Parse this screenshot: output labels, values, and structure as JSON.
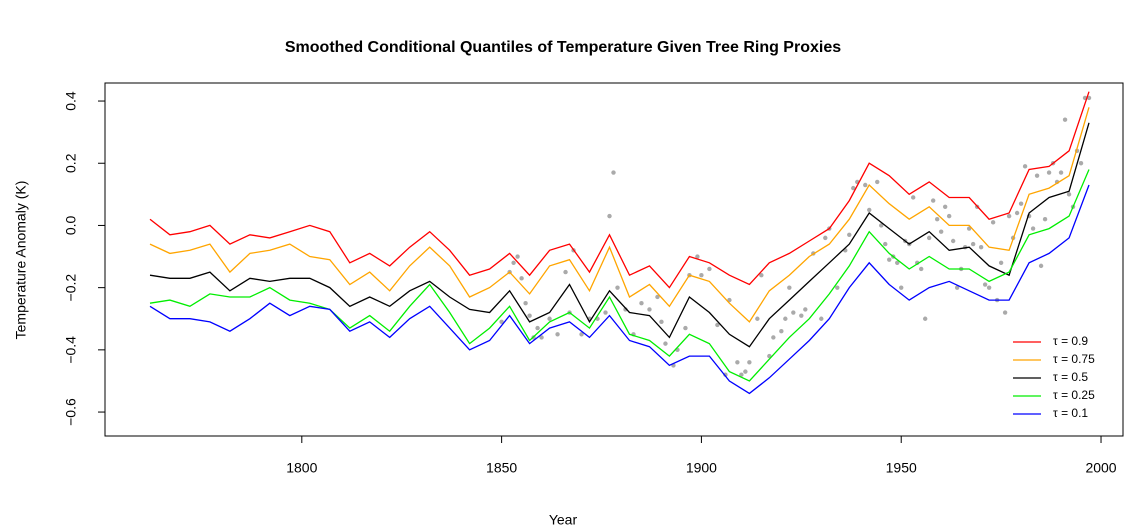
{
  "chart_data": {
    "type": "line",
    "title": "Smoothed Conditional Quantiles of Temperature Given Tree Ring Proxies",
    "xlabel": "Year",
    "ylabel": "Temperature Anomaly (K)",
    "xlim": [
      1750.75,
      2005.5
    ],
    "ylim": [
      -0.677,
      0.458
    ],
    "xticks": [
      1800,
      1850,
      1900,
      1950,
      2000
    ],
    "yticks": [
      {
        "value": -0.6,
        "label": "−0.6"
      },
      {
        "value": -0.4,
        "label": "−0.4"
      },
      {
        "value": -0.2,
        "label": "−0.2"
      },
      {
        "value": 0.0,
        "label": "0.0"
      },
      {
        "value": 0.2,
        "label": "0.2"
      },
      {
        "value": 0.4,
        "label": "0.4"
      }
    ],
    "legend": "bottom-right",
    "x": [
      1762,
      1767,
      1772,
      1777,
      1782,
      1787,
      1792,
      1797,
      1802,
      1807,
      1812,
      1817,
      1822,
      1827,
      1832,
      1837,
      1842,
      1847,
      1852,
      1857,
      1862,
      1867,
      1872,
      1877,
      1882,
      1887,
      1892,
      1897,
      1902,
      1907,
      1912,
      1917,
      1922,
      1927,
      1932,
      1937,
      1942,
      1947,
      1952,
      1957,
      1962,
      1967,
      1972,
      1977,
      1982,
      1987,
      1992,
      1997
    ],
    "series": [
      {
        "name": "τ = 0.9",
        "color": "#ff0000",
        "values": [
          0.02,
          -0.03,
          -0.02,
          0.0,
          -0.06,
          -0.03,
          -0.04,
          -0.02,
          0.0,
          -0.02,
          -0.12,
          -0.09,
          -0.13,
          -0.07,
          -0.02,
          -0.08,
          -0.16,
          -0.14,
          -0.09,
          -0.16,
          -0.08,
          -0.06,
          -0.15,
          -0.03,
          -0.16,
          -0.13,
          -0.2,
          -0.1,
          -0.12,
          -0.16,
          -0.19,
          -0.12,
          -0.09,
          -0.05,
          -0.01,
          0.08,
          0.2,
          0.16,
          0.1,
          0.14,
          0.09,
          0.09,
          0.02,
          0.04,
          0.18,
          0.19,
          0.24,
          0.43
        ]
      },
      {
        "name": "τ = 0.75",
        "color": "#ffa500",
        "values": [
          -0.06,
          -0.09,
          -0.08,
          -0.06,
          -0.15,
          -0.09,
          -0.08,
          -0.06,
          -0.1,
          -0.11,
          -0.19,
          -0.15,
          -0.21,
          -0.13,
          -0.07,
          -0.13,
          -0.23,
          -0.2,
          -0.15,
          -0.22,
          -0.13,
          -0.11,
          -0.21,
          -0.07,
          -0.23,
          -0.19,
          -0.26,
          -0.16,
          -0.18,
          -0.25,
          -0.31,
          -0.21,
          -0.16,
          -0.1,
          -0.06,
          0.02,
          0.13,
          0.07,
          0.02,
          0.06,
          0.0,
          0.0,
          -0.07,
          -0.08,
          0.1,
          0.12,
          0.16,
          0.38
        ]
      },
      {
        "name": "τ = 0.5",
        "color": "#000000",
        "values": [
          -0.16,
          -0.17,
          -0.17,
          -0.15,
          -0.21,
          -0.17,
          -0.18,
          -0.17,
          -0.17,
          -0.2,
          -0.26,
          -0.23,
          -0.26,
          -0.21,
          -0.18,
          -0.23,
          -0.27,
          -0.28,
          -0.21,
          -0.31,
          -0.28,
          -0.19,
          -0.31,
          -0.21,
          -0.28,
          -0.29,
          -0.36,
          -0.23,
          -0.28,
          -0.35,
          -0.39,
          -0.3,
          -0.24,
          -0.18,
          -0.12,
          -0.06,
          0.04,
          -0.01,
          -0.06,
          -0.02,
          -0.08,
          -0.07,
          -0.13,
          -0.16,
          0.04,
          0.09,
          0.11,
          0.33
        ]
      },
      {
        "name": "τ = 0.25",
        "color": "#00ee00",
        "values": [
          -0.25,
          -0.24,
          -0.26,
          -0.22,
          -0.23,
          -0.23,
          -0.2,
          -0.24,
          -0.25,
          -0.27,
          -0.33,
          -0.29,
          -0.34,
          -0.26,
          -0.19,
          -0.28,
          -0.38,
          -0.33,
          -0.26,
          -0.37,
          -0.31,
          -0.28,
          -0.33,
          -0.23,
          -0.35,
          -0.37,
          -0.42,
          -0.35,
          -0.38,
          -0.47,
          -0.5,
          -0.43,
          -0.36,
          -0.3,
          -0.22,
          -0.13,
          -0.02,
          -0.09,
          -0.14,
          -0.1,
          -0.14,
          -0.14,
          -0.18,
          -0.15,
          -0.03,
          -0.01,
          0.03,
          0.18
        ]
      },
      {
        "name": "τ = 0.1",
        "color": "#0000ff",
        "values": [
          -0.26,
          -0.3,
          -0.3,
          -0.31,
          -0.34,
          -0.3,
          -0.25,
          -0.29,
          -0.26,
          -0.27,
          -0.34,
          -0.31,
          -0.36,
          -0.3,
          -0.26,
          -0.33,
          -0.4,
          -0.37,
          -0.29,
          -0.38,
          -0.33,
          -0.31,
          -0.36,
          -0.29,
          -0.37,
          -0.39,
          -0.45,
          -0.42,
          -0.42,
          -0.5,
          -0.54,
          -0.49,
          -0.43,
          -0.37,
          -0.3,
          -0.2,
          -0.12,
          -0.19,
          -0.24,
          -0.2,
          -0.18,
          -0.21,
          -0.24,
          -0.24,
          -0.12,
          -0.09,
          -0.04,
          0.13
        ]
      }
    ],
    "scatter": {
      "color": "#aaaaaa",
      "x": [
        1850,
        1852,
        1853,
        1854,
        1855,
        1856,
        1857,
        1858,
        1859,
        1860,
        1862,
        1864,
        1866,
        1867,
        1868,
        1870,
        1872,
        1874,
        1876,
        1877,
        1878,
        1879,
        1881,
        1883,
        1885,
        1887,
        1889,
        1890,
        1891,
        1893,
        1894,
        1896,
        1897,
        1899,
        1900,
        1902,
        1904,
        1906,
        1907,
        1909,
        1910,
        1911,
        1912,
        1914,
        1915,
        1917,
        1918,
        1920,
        1921,
        1922,
        1923,
        1925,
        1926,
        1928,
        1930,
        1931,
        1932,
        1934,
        1936,
        1937,
        1938,
        1939,
        1941,
        1942,
        1944,
        1945,
        1946,
        1947,
        1948,
        1949,
        1950,
        1951,
        1952,
        1953,
        1954,
        1955,
        1956,
        1957,
        1958,
        1959,
        1960,
        1961,
        1962,
        1963,
        1964,
        1965,
        1966,
        1967,
        1968,
        1969,
        1970,
        1971,
        1972,
        1973,
        1974,
        1975,
        1976,
        1977,
        1978,
        1979,
        1980,
        1981,
        1982,
        1983,
        1984,
        1985,
        1986,
        1987,
        1988,
        1989,
        1990,
        1991,
        1992,
        1993,
        1994,
        1995,
        1996,
        1997
      ],
      "y": [
        -0.31,
        -0.15,
        -0.12,
        -0.1,
        -0.17,
        -0.25,
        -0.29,
        -0.36,
        -0.33,
        -0.36,
        -0.3,
        -0.35,
        -0.15,
        -0.28,
        -0.08,
        -0.35,
        -0.3,
        -0.3,
        -0.28,
        0.03,
        0.17,
        -0.2,
        -0.27,
        -0.35,
        -0.25,
        -0.27,
        -0.23,
        -0.31,
        -0.38,
        -0.45,
        -0.4,
        -0.33,
        -0.16,
        -0.1,
        -0.16,
        -0.14,
        -0.32,
        -0.48,
        -0.24,
        -0.44,
        -0.48,
        -0.47,
        -0.44,
        -0.3,
        -0.16,
        -0.42,
        -0.36,
        -0.34,
        -0.3,
        -0.2,
        -0.28,
        -0.29,
        -0.27,
        -0.09,
        -0.3,
        -0.04,
        -0.01,
        -0.2,
        -0.08,
        -0.03,
        0.12,
        0.14,
        0.13,
        0.05,
        0.14,
        0.0,
        -0.06,
        -0.11,
        -0.1,
        -0.12,
        -0.2,
        -0.05,
        -0.06,
        0.09,
        -0.12,
        -0.14,
        -0.3,
        -0.04,
        0.08,
        0.02,
        -0.02,
        0.06,
        0.03,
        -0.05,
        -0.2,
        -0.14,
        -0.07,
        -0.01,
        -0.06,
        0.06,
        -0.07,
        -0.19,
        -0.2,
        0.01,
        -0.24,
        -0.12,
        -0.28,
        0.03,
        -0.04,
        0.04,
        0.07,
        0.19,
        0.03,
        -0.01,
        0.16,
        -0.13,
        0.02,
        0.17,
        0.2,
        0.14,
        0.17,
        0.34,
        0.1,
        0.06,
        0.24,
        0.2,
        0.41,
        0.41
      ]
    }
  }
}
